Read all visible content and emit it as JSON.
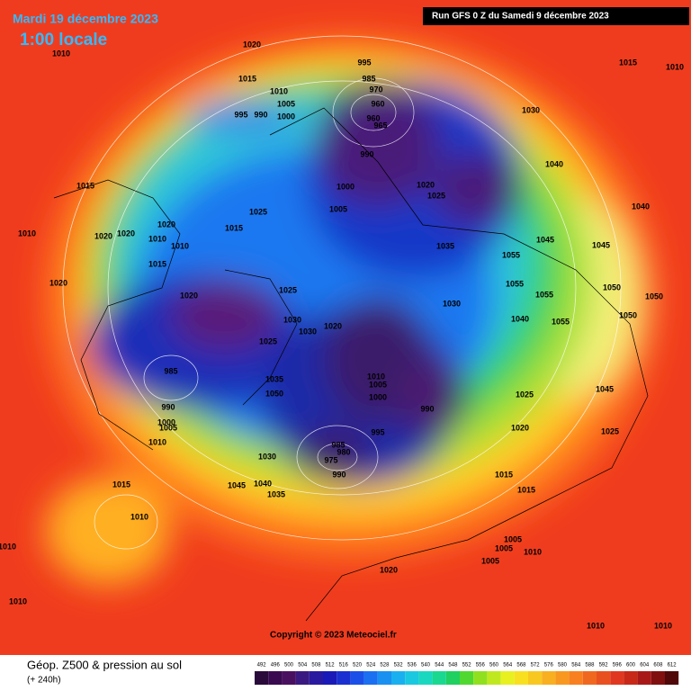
{
  "header": {
    "date": "Mardi 19 décembre 2023",
    "time": "1:00 locale",
    "run": "Run GFS 0 Z du Samedi 9 décembre 2023"
  },
  "pressure_labels": [
    "1010",
    "1020",
    "995",
    "1015",
    "1010",
    "1015",
    "985",
    "970",
    "1010",
    "960",
    "1005",
    "1030",
    "995",
    "990",
    "1000",
    "960",
    "965",
    "990",
    "1040",
    "1015",
    "1000",
    "1020",
    "1025",
    "1005",
    "1025",
    "1040",
    "1020",
    "1015",
    "1010",
    "1020",
    "1020",
    "1010",
    "1010",
    "1035",
    "1045",
    "1045",
    "1055",
    "1015",
    "1020",
    "1025",
    "1055",
    "1050",
    "1020",
    "1055",
    "1050",
    "1030",
    "1030",
    "1030",
    "1020",
    "1055",
    "1050",
    "1040",
    "1025",
    "985",
    "1010",
    "1035",
    "1005",
    "1050",
    "1000",
    "1045",
    "1025",
    "990",
    "990",
    "995",
    "1000",
    "1005",
    "1020",
    "1025",
    "1010",
    "985",
    "980",
    "975",
    "1030",
    "990",
    "1015",
    "1015",
    "1040",
    "1035",
    "1015",
    "1045",
    "1010",
    "1005",
    "1005",
    "1010",
    "1005",
    "1010",
    "1020",
    "1010",
    "1010",
    "1010"
  ],
  "copyright": "Copyright © 2023 Meteociel.fr",
  "legend": {
    "title": "Géop. Z500 & pression au sol",
    "subtitle": "(+ 240h)",
    "scale": [
      "492",
      "496",
      "500",
      "504",
      "508",
      "512",
      "516",
      "520",
      "524",
      "528",
      "532",
      "536",
      "540",
      "544",
      "548",
      "552",
      "556",
      "560",
      "564",
      "568",
      "572",
      "576",
      "580",
      "584",
      "588",
      "592",
      "596",
      "600",
      "604",
      "608",
      "612"
    ]
  }
}
